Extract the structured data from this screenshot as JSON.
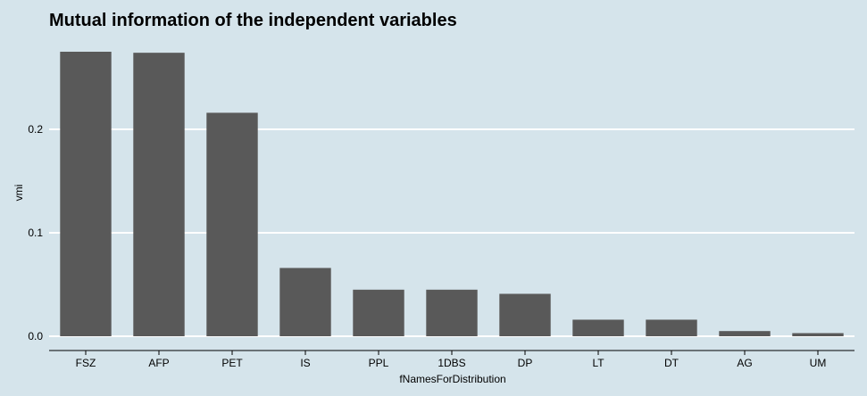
{
  "chart_data": {
    "type": "bar",
    "title": "Mutual information of the independent variables",
    "xlabel": "fNamesForDistribution",
    "ylabel": "vmi",
    "categories": [
      "FSZ",
      "AFP",
      "PET",
      "IS",
      "PPL",
      "1DBS",
      "DP",
      "LT",
      "DT",
      "AG",
      "UM"
    ],
    "values": [
      0.275,
      0.274,
      0.216,
      0.066,
      0.045,
      0.045,
      0.041,
      0.016,
      0.016,
      0.005,
      0.003
    ],
    "ylim": [
      0,
      0.28
    ],
    "yticks": [
      0.0,
      0.1,
      0.2
    ],
    "ytick_labels": [
      "0.0",
      "0.1",
      "0.2"
    ],
    "grid": true,
    "colors": {
      "background": "#d5e4eb",
      "bar": "#595959",
      "grid": "#ffffff",
      "axis": "#000000",
      "text": "#000000"
    }
  }
}
